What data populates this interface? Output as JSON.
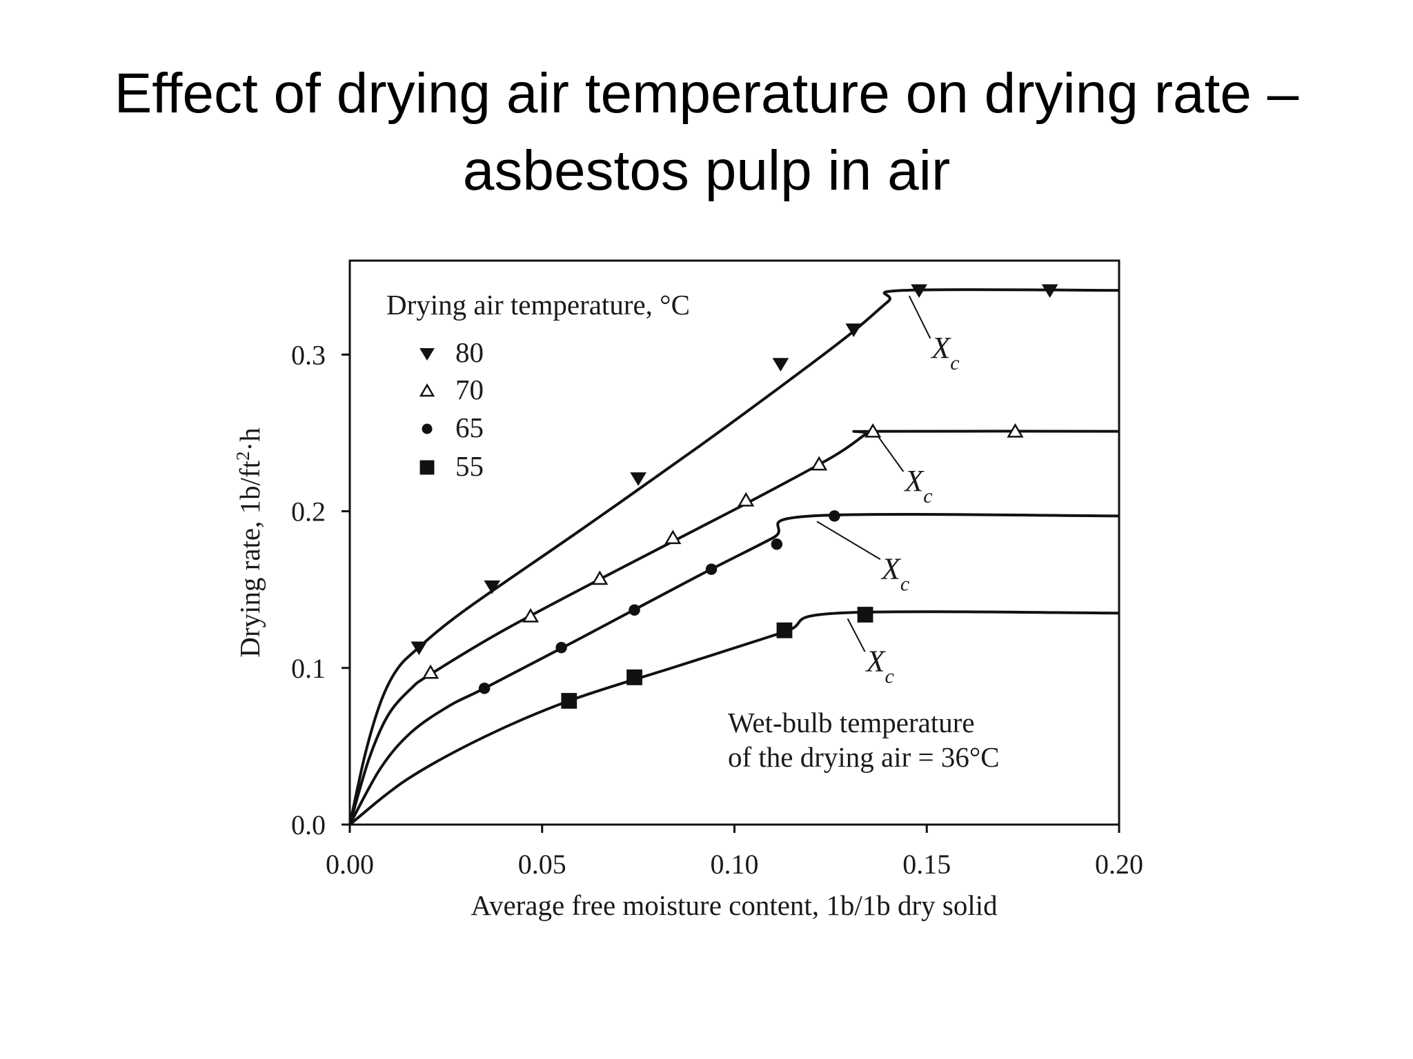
{
  "slide": {
    "title_line1": "Effect of drying air temperature on drying rate –",
    "title_line2": "asbestos pulp in air"
  },
  "chart_data": {
    "type": "line",
    "title": "",
    "xlabel": "Average free moisture content, 1b/1b dry solid",
    "ylabel": "Drying rate, 1b/ft²·h",
    "xlim": [
      0.0,
      0.2
    ],
    "ylim": [
      0.0,
      0.36
    ],
    "xticks": [
      "0.00",
      "0.05",
      "0.10",
      "0.15",
      "0.20"
    ],
    "yticks": [
      "0.0",
      "0.1",
      "0.2",
      "0.3"
    ],
    "grid": false,
    "legend": {
      "title": "Drying air temperature, °C",
      "placement": "top-left"
    },
    "annotation": {
      "line1": "Wet-bulb temperature",
      "line2": "of the drying air = 36°C"
    },
    "critical_label": "X",
    "critical_subscript": "c",
    "series": [
      {
        "name": "80",
        "marker": "triangle-down",
        "points": [
          [
            0.018,
            0.113
          ],
          [
            0.037,
            0.152
          ],
          [
            0.075,
            0.221
          ],
          [
            0.112,
            0.294
          ],
          [
            0.131,
            0.316
          ],
          [
            0.148,
            0.341
          ],
          [
            0.182,
            0.341
          ]
        ],
        "curve": [
          [
            0.0,
            0.0
          ],
          [
            0.004,
            0.045
          ],
          [
            0.008,
            0.078
          ],
          [
            0.012,
            0.098
          ],
          [
            0.017,
            0.111
          ],
          [
            0.03,
            0.137
          ],
          [
            0.06,
            0.188
          ],
          [
            0.09,
            0.24
          ],
          [
            0.115,
            0.285
          ],
          [
            0.13,
            0.313
          ],
          [
            0.14,
            0.334
          ],
          [
            0.144,
            0.341
          ],
          [
            0.2,
            0.341
          ]
        ],
        "critical_point": [
          0.144,
          0.341
        ],
        "critical_label_at": [
          0.152,
          0.298
        ]
      },
      {
        "name": "70",
        "marker": "triangle-up-open",
        "points": [
          [
            0.021,
            0.097
          ],
          [
            0.047,
            0.133
          ],
          [
            0.065,
            0.157
          ],
          [
            0.084,
            0.183
          ],
          [
            0.103,
            0.207
          ],
          [
            0.122,
            0.23
          ],
          [
            0.136,
            0.251
          ],
          [
            0.173,
            0.251
          ]
        ],
        "curve": [
          [
            0.0,
            0.0
          ],
          [
            0.005,
            0.042
          ],
          [
            0.01,
            0.07
          ],
          [
            0.016,
            0.087
          ],
          [
            0.021,
            0.096
          ],
          [
            0.04,
            0.124
          ],
          [
            0.07,
            0.163
          ],
          [
            0.1,
            0.201
          ],
          [
            0.125,
            0.234
          ],
          [
            0.134,
            0.249
          ],
          [
            0.136,
            0.251
          ],
          [
            0.2,
            0.251
          ]
        ],
        "critical_point": [
          0.136,
          0.251
        ],
        "critical_label_at": [
          0.145,
          0.213
        ]
      },
      {
        "name": "65",
        "marker": "circle",
        "points": [
          [
            0.035,
            0.087
          ],
          [
            0.055,
            0.113
          ],
          [
            0.074,
            0.137
          ],
          [
            0.094,
            0.163
          ],
          [
            0.111,
            0.179
          ],
          [
            0.126,
            0.197
          ]
        ],
        "curve": [
          [
            0.0,
            0.0
          ],
          [
            0.008,
            0.036
          ],
          [
            0.016,
            0.059
          ],
          [
            0.026,
            0.076
          ],
          [
            0.035,
            0.087
          ],
          [
            0.06,
            0.119
          ],
          [
            0.09,
            0.158
          ],
          [
            0.11,
            0.183
          ],
          [
            0.12,
            0.197
          ],
          [
            0.2,
            0.197
          ]
        ],
        "critical_point": [
          0.12,
          0.197
        ],
        "critical_label_at": [
          0.139,
          0.157
        ]
      },
      {
        "name": "55",
        "marker": "square",
        "points": [
          [
            0.057,
            0.079
          ],
          [
            0.074,
            0.094
          ],
          [
            0.113,
            0.124
          ],
          [
            0.134,
            0.134
          ]
        ],
        "curve": [
          [
            0.0,
            0.0
          ],
          [
            0.015,
            0.029
          ],
          [
            0.035,
            0.056
          ],
          [
            0.057,
            0.079
          ],
          [
            0.085,
            0.101
          ],
          [
            0.113,
            0.123
          ],
          [
            0.127,
            0.135
          ],
          [
            0.2,
            0.135
          ]
        ],
        "critical_point": [
          0.128,
          0.135
        ],
        "critical_label_at": [
          0.135,
          0.098
        ]
      }
    ]
  }
}
